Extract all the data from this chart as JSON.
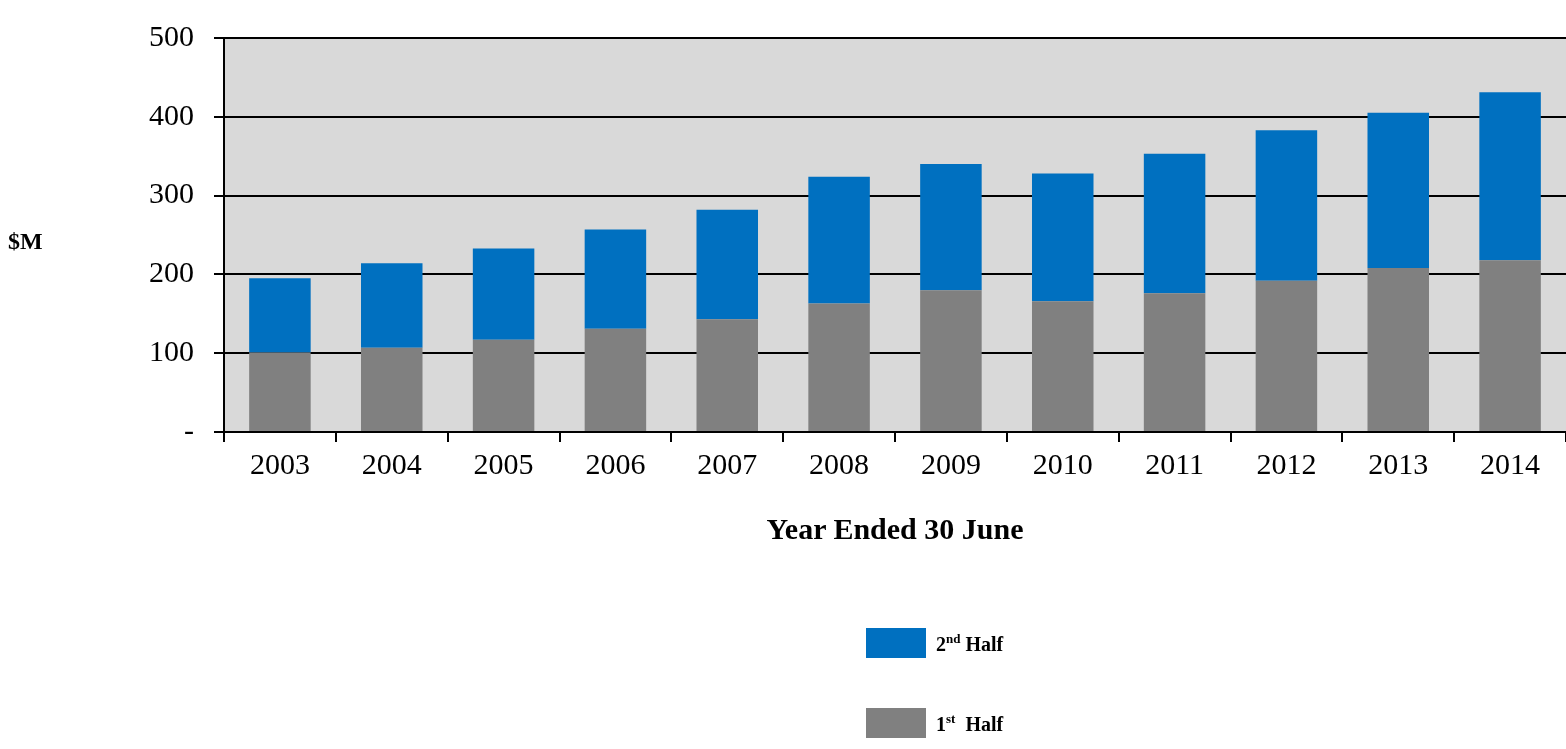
{
  "chart_data": {
    "type": "bar",
    "stacked": true,
    "xlabel": "Year Ended  30 June",
    "ylabel": "$M",
    "categories": [
      "2003",
      "2004",
      "2005",
      "2006",
      "2007",
      "2008",
      "2009",
      "2010",
      "2011",
      "2012",
      "2013",
      "2014"
    ],
    "series": [
      {
        "name": "1$^{st}$  Half",
        "color": "#808080",
        "values": [
          101,
          107,
          117,
          131,
          143,
          163,
          180,
          166,
          176,
          192,
          208,
          218
        ]
      },
      {
        "name": "2$^{nd}$ Half",
        "color": "#0070c0",
        "values": [
          94,
          107,
          116,
          126,
          139,
          161,
          160,
          162,
          177,
          191,
          197,
          213
        ]
      }
    ],
    "ylim": [
      0,
      500
    ],
    "yticks": [
      {
        "value": 0,
        "label": "-"
      },
      100,
      200,
      300,
      400,
      500
    ],
    "grid": "y",
    "legend": "bottom"
  }
}
